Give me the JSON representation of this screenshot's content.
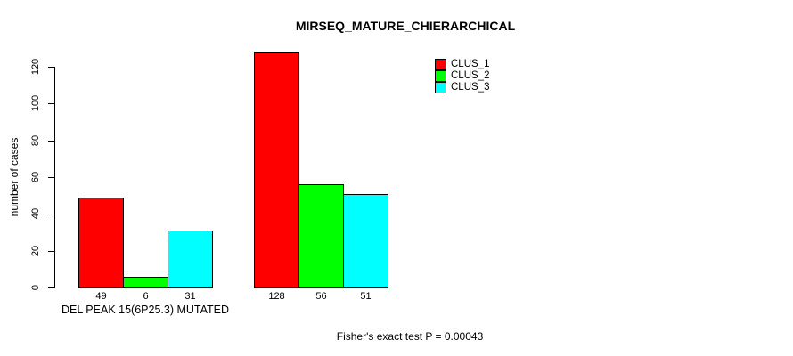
{
  "chart_data": {
    "type": "bar",
    "title": "MIRSEQ_MATURE_CHIERARCHICAL",
    "xlabel": "DEL PEAK 15(6P25.3) MUTATED",
    "ylabel": "number of cases",
    "categories": [
      "DEL PEAK 15(6P25.3) MUTATED",
      ""
    ],
    "series": [
      {
        "name": "CLUS_1",
        "color": "#ff0000",
        "values": [
          49,
          128
        ]
      },
      {
        "name": "CLUS_2",
        "color": "#00ff00",
        "values": [
          6,
          56
        ]
      },
      {
        "name": "CLUS_3",
        "color": "#00ffff",
        "values": [
          31,
          51
        ]
      }
    ],
    "yticks": [
      0,
      20,
      40,
      60,
      80,
      100,
      120
    ],
    "ylim": [
      0,
      128
    ],
    "grid": false,
    "bar_value_labels_shown": true,
    "legend_position": "top-right",
    "annotation": "Fisher's exact test P = 0.00043"
  }
}
